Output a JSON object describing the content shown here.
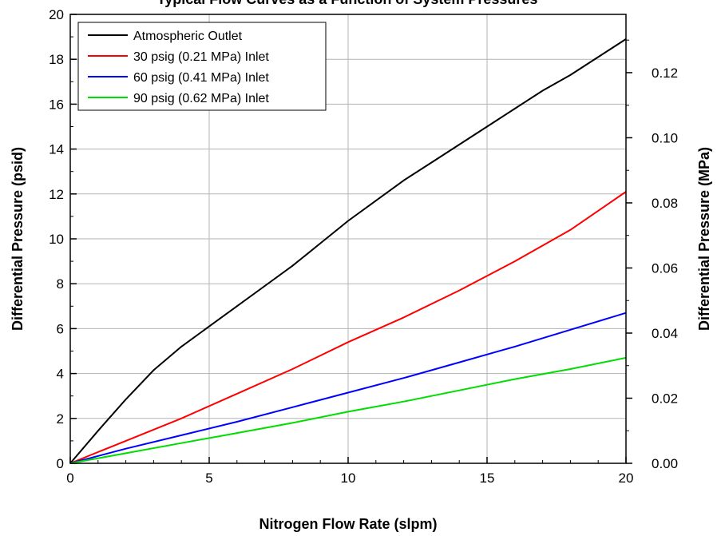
{
  "chart_data": {
    "type": "line",
    "title": "Typical Flow Curves as a Function of System Pressures",
    "xlabel": "Nitrogen Flow Rate (slpm)",
    "ylabel": "Differential Pressure (psid)",
    "y2label": "Differential Pressure (MPa)",
    "xlim": [
      0,
      20
    ],
    "ylim": [
      0,
      20
    ],
    "y2lim": [
      0,
      0.1379
    ],
    "x_ticks": [
      "0",
      "5",
      "10",
      "15",
      "20"
    ],
    "y_ticks": [
      "0",
      "2",
      "4",
      "6",
      "8",
      "10",
      "12",
      "14",
      "16",
      "18",
      "20"
    ],
    "y2_ticks": [
      "0.00",
      "0.02",
      "0.04",
      "0.06",
      "0.08",
      "0.10",
      "0.12"
    ],
    "grid": true,
    "legend_position": "top-left",
    "series": [
      {
        "name": "Atmospheric Outlet",
        "color": "#000000",
        "x": [
          0,
          1,
          2,
          3,
          4,
          5,
          6,
          7,
          8,
          9,
          10,
          11,
          12,
          13,
          14,
          15,
          16,
          17,
          18,
          19,
          20
        ],
        "y": [
          0,
          1.45,
          2.85,
          4.15,
          5.2,
          6.1,
          7.0,
          7.9,
          8.8,
          9.8,
          10.8,
          11.7,
          12.6,
          13.4,
          14.2,
          15.0,
          15.8,
          16.6,
          17.3,
          18.1,
          18.9
        ]
      },
      {
        "name": "30 psig (0.21 MPa) Inlet",
        "color": "#ff0000",
        "x": [
          0,
          2,
          4,
          6,
          8,
          10,
          12,
          14,
          16,
          18,
          20
        ],
        "y": [
          0,
          1.0,
          2.0,
          3.1,
          4.2,
          5.4,
          6.5,
          7.7,
          9.0,
          10.4,
          12.1
        ]
      },
      {
        "name": "60 psig (0.41 MPa) Inlet",
        "color": "#0000ff",
        "x": [
          0,
          2,
          4,
          6,
          8,
          10,
          12,
          14,
          16,
          18,
          20
        ],
        "y": [
          0,
          0.65,
          1.25,
          1.85,
          2.5,
          3.15,
          3.8,
          4.5,
          5.2,
          5.95,
          6.7
        ]
      },
      {
        "name": "90 psig (0.62 MPa) Inlet",
        "color": "#00dd00",
        "x": [
          0,
          2,
          4,
          6,
          8,
          10,
          12,
          14,
          16,
          18,
          20
        ],
        "y": [
          0,
          0.45,
          0.9,
          1.35,
          1.8,
          2.3,
          2.75,
          3.25,
          3.75,
          4.2,
          4.7
        ]
      }
    ]
  }
}
